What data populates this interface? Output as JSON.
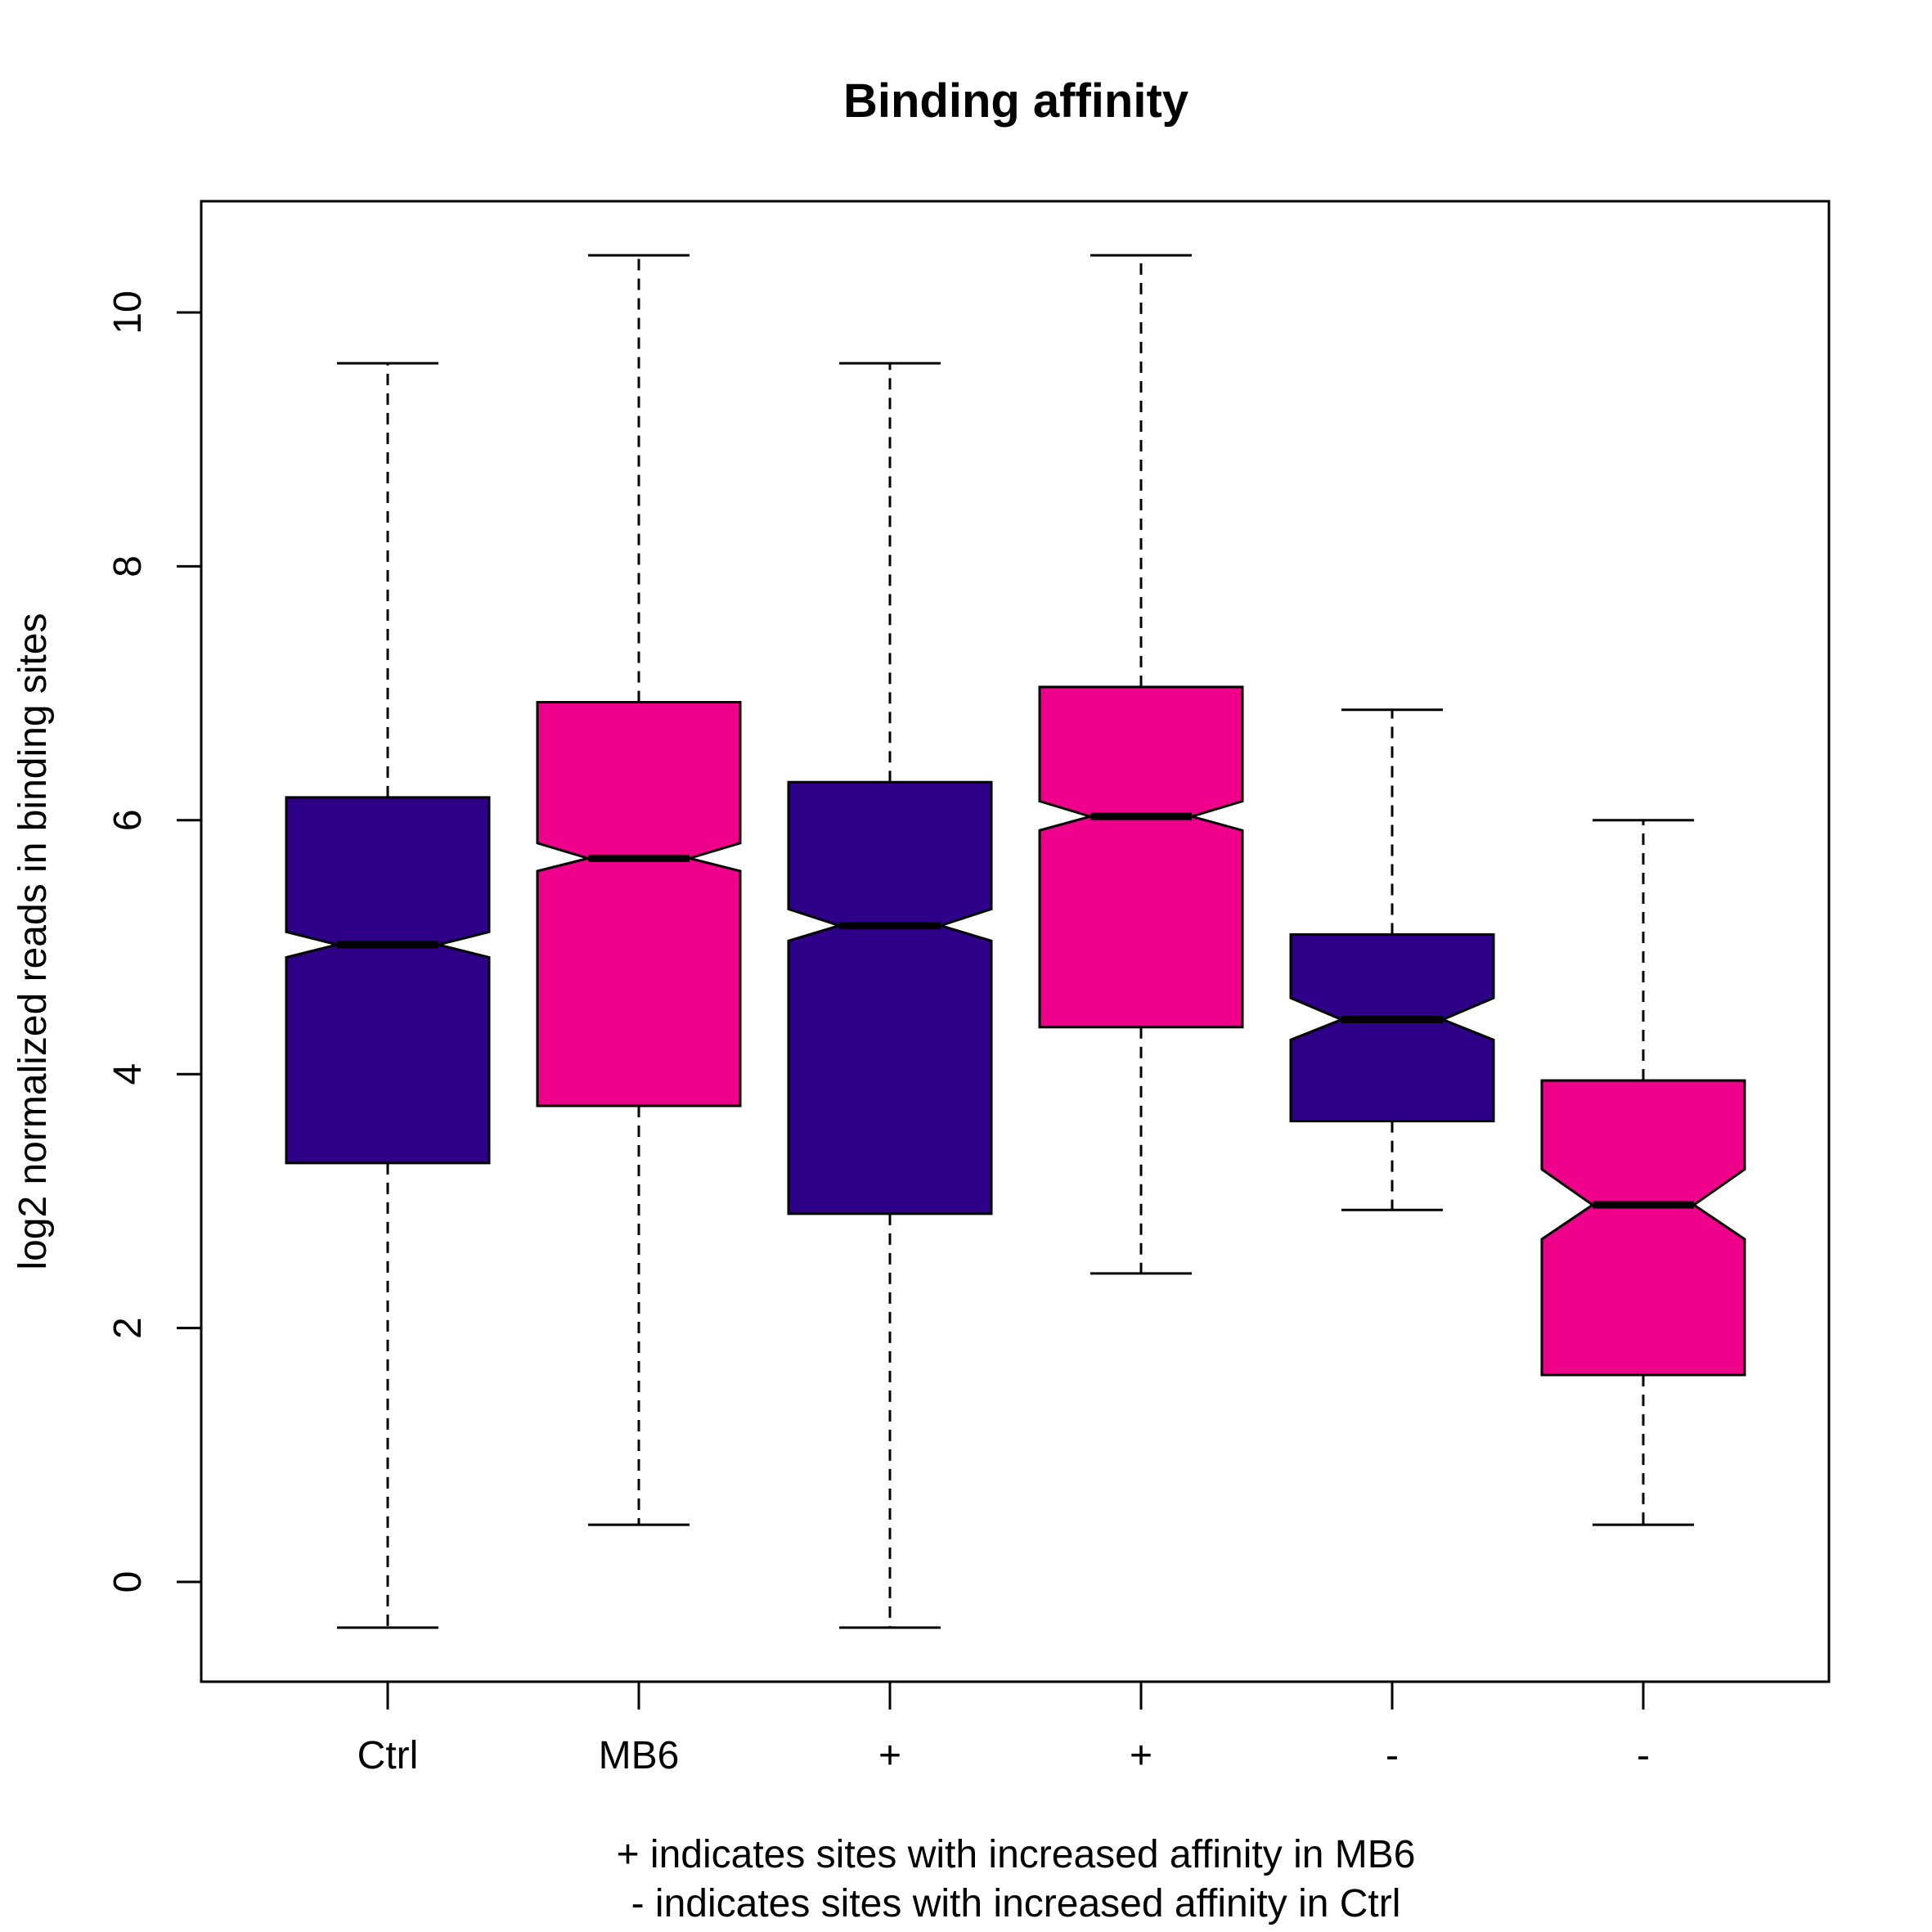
{
  "chart_data": {
    "type": "boxplot",
    "title": "Binding affinity",
    "ylabel": "log2 normalized reads in binding sites",
    "xlabel_lines": [
      "+ indicates sites with increased affinity in MB6",
      "- indicates sites with increased affinity in Ctrl"
    ],
    "ylim": [
      -0.8,
      10.9
    ],
    "yticks": [
      0,
      2,
      4,
      6,
      8,
      10
    ],
    "notched": true,
    "whisker_style": "dashed",
    "colors": {
      "navy": "#2E0087",
      "pink": "#EE008A"
    },
    "boxes": [
      {
        "label": "Ctrl",
        "color": "#2E0087",
        "min": -0.36,
        "q1": 3.3,
        "median": 5.02,
        "q3": 6.18,
        "max": 9.6,
        "notch_low": 4.92,
        "notch_high": 5.12
      },
      {
        "label": "MB6",
        "color": "#EE008A",
        "min": 0.45,
        "q1": 3.75,
        "median": 5.7,
        "q3": 6.93,
        "max": 10.45,
        "notch_low": 5.6,
        "notch_high": 5.82
      },
      {
        "label": "+",
        "color": "#2E0087",
        "min": -0.36,
        "q1": 2.9,
        "median": 5.17,
        "q3": 6.3,
        "max": 9.6,
        "notch_low": 5.05,
        "notch_high": 5.3
      },
      {
        "label": "+",
        "color": "#EE008A",
        "min": 2.43,
        "q1": 4.37,
        "median": 6.03,
        "q3": 7.05,
        "max": 10.45,
        "notch_low": 5.92,
        "notch_high": 6.15
      },
      {
        "label": "-",
        "color": "#2E0087",
        "min": 2.93,
        "q1": 3.63,
        "median": 4.43,
        "q3": 5.1,
        "max": 6.87,
        "notch_low": 4.27,
        "notch_high": 4.6
      },
      {
        "label": "-",
        "color": "#EE008A",
        "min": 0.45,
        "q1": 1.63,
        "median": 2.97,
        "q3": 3.95,
        "max": 6.0,
        "notch_low": 2.7,
        "notch_high": 3.25
      }
    ]
  }
}
